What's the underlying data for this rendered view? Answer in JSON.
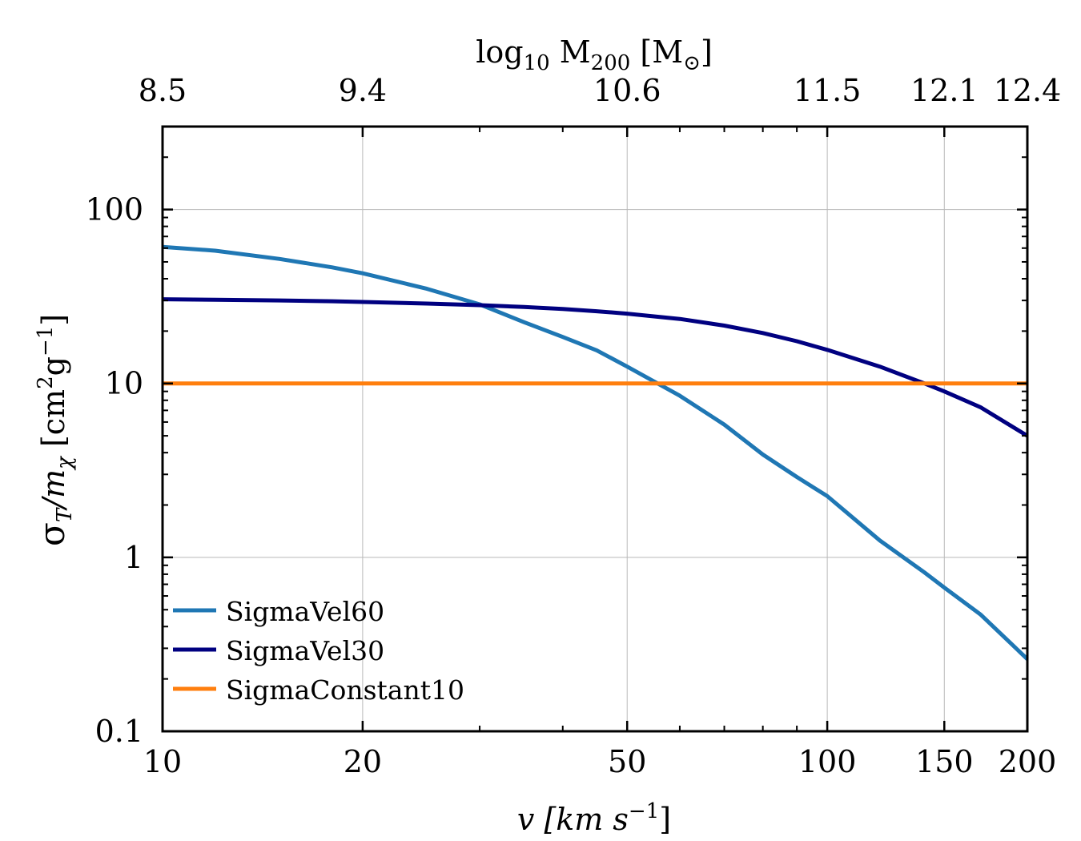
{
  "chart_data": {
    "type": "line",
    "xscale": "log",
    "yscale": "log",
    "xlim": [
      10,
      200
    ],
    "ylim": [
      0.1,
      300
    ],
    "grid": true,
    "xlabel": {
      "base": "v [km s",
      "sup": "−1",
      "tail": "]"
    },
    "ylabel": {
      "sigma": "σ",
      "sub1": "T",
      "slash": "/m",
      "sub2": "χ",
      "pre": " [cm",
      "sup1": "2",
      "mid": "g",
      "sup2": "−1",
      "post": "]"
    },
    "top_xlabel": {
      "base": "log",
      "sub1": "10",
      "mid": " M",
      "sub2": "200",
      "post": " [M",
      "sub3": "⊙",
      "tail": "]"
    },
    "x_ticks": [
      {
        "value": 10,
        "label": "10"
      },
      {
        "value": 20,
        "label": "20"
      },
      {
        "value": 50,
        "label": "50"
      },
      {
        "value": 100,
        "label": "100"
      },
      {
        "value": 150,
        "label": "150"
      },
      {
        "value": 200,
        "label": "200"
      }
    ],
    "y_ticks": [
      {
        "value": 0.1,
        "label": "0.1"
      },
      {
        "value": 1,
        "label": "1"
      },
      {
        "value": 10,
        "label": "10"
      },
      {
        "value": 100,
        "label": "100"
      }
    ],
    "top_ticks": [
      {
        "value": 10,
        "label": "8.5"
      },
      {
        "value": 20,
        "label": "9.4"
      },
      {
        "value": 50,
        "label": "10.6"
      },
      {
        "value": 100,
        "label": "11.5"
      },
      {
        "value": 150,
        "label": "12.1"
      },
      {
        "value": 200,
        "label": "12.4"
      }
    ],
    "x": [
      10,
      12,
      15,
      18,
      20,
      25,
      30,
      35,
      40,
      45,
      50,
      60,
      70,
      80,
      90,
      100,
      120,
      140,
      150,
      170,
      200
    ],
    "series": [
      {
        "name": "SigmaVel60",
        "color": "#1f77b4",
        "values": [
          61,
          58,
          52,
          46.5,
          43,
          35,
          28.5,
          22.5,
          18.5,
          15.5,
          12.5,
          8.5,
          5.8,
          3.9,
          2.9,
          2.25,
          1.25,
          0.82,
          0.67,
          0.47,
          0.26
        ]
      },
      {
        "name": "SigmaVel30",
        "color": "#000080",
        "values": [
          30.5,
          30.3,
          30,
          29.7,
          29.4,
          28.8,
          28.2,
          27.5,
          26.8,
          26.0,
          25.2,
          23.5,
          21.5,
          19.5,
          17.5,
          15.6,
          12.5,
          10.0,
          9.0,
          7.3,
          5.0
        ]
      },
      {
        "name": "SigmaConstant10",
        "color": "#ff7f0e",
        "values": [
          10,
          10,
          10,
          10,
          10,
          10,
          10,
          10,
          10,
          10,
          10,
          10,
          10,
          10,
          10,
          10,
          10,
          10,
          10,
          10,
          10
        ]
      }
    ],
    "legend": {
      "position": "lower-left"
    }
  }
}
